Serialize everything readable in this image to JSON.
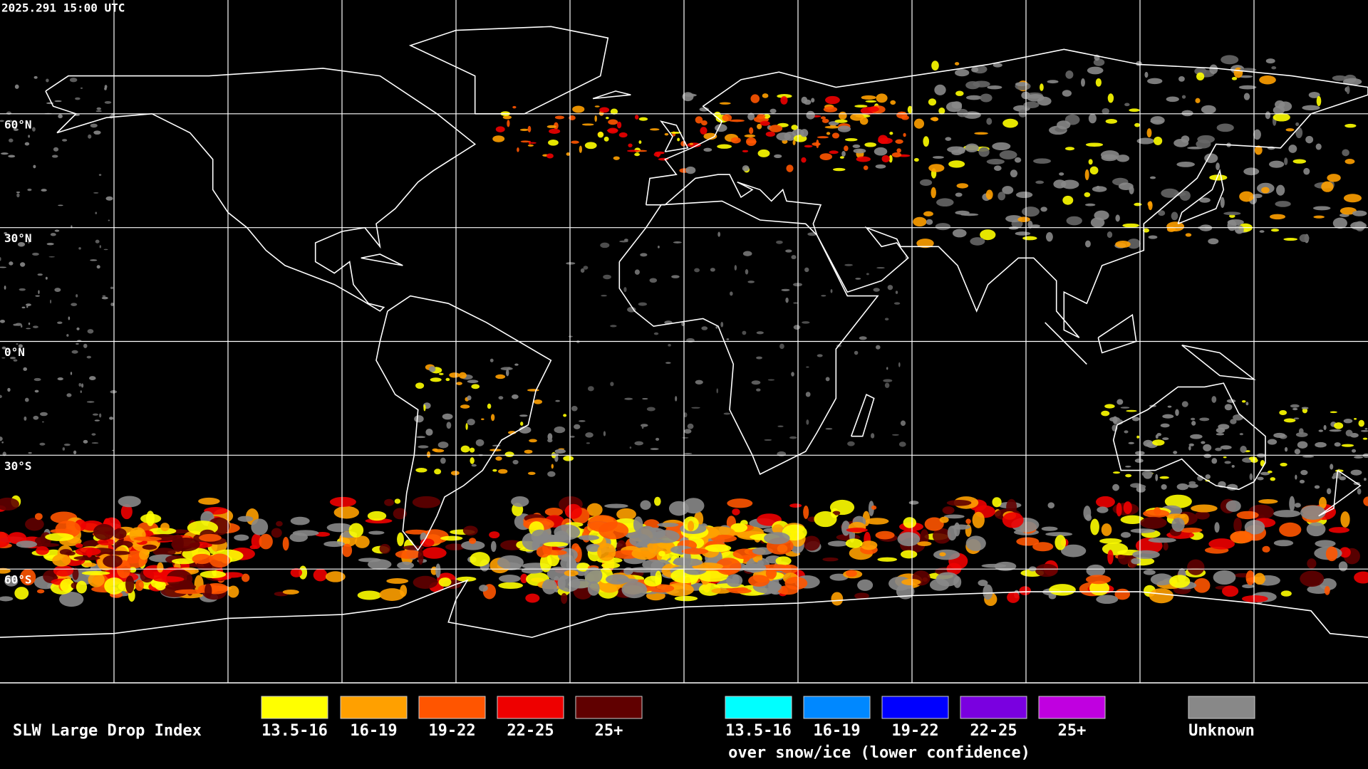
{
  "header": {
    "timestamp": "2025.291 15:00 UTC"
  },
  "map": {
    "latitude_labels": [
      "60°N",
      "30°N",
      "0°N",
      "30°S",
      "60°S"
    ]
  },
  "legend": {
    "title": "SLW Large Drop Index",
    "items": [
      {
        "label": "13.5-16",
        "color": "#ffff00"
      },
      {
        "label": "16-19",
        "color": "#ffa000"
      },
      {
        "label": "19-22",
        "color": "#ff5500"
      },
      {
        "label": "22-25",
        "color": "#ee0000"
      },
      {
        "label": "25+",
        "color": "#600000"
      }
    ],
    "snow_ice_items": [
      {
        "label": "13.5-16",
        "color": "#00ffff"
      },
      {
        "label": "16-19",
        "color": "#0088ff"
      },
      {
        "label": "19-22",
        "color": "#0000ff"
      },
      {
        "label": "22-25",
        "color": "#7a00e0"
      },
      {
        "label": "25+",
        "color": "#c000e0"
      }
    ],
    "snow_ice_caption": "over snow/ice (lower confidence)",
    "unknown": {
      "label": "Unknown",
      "color": "#888888"
    }
  }
}
